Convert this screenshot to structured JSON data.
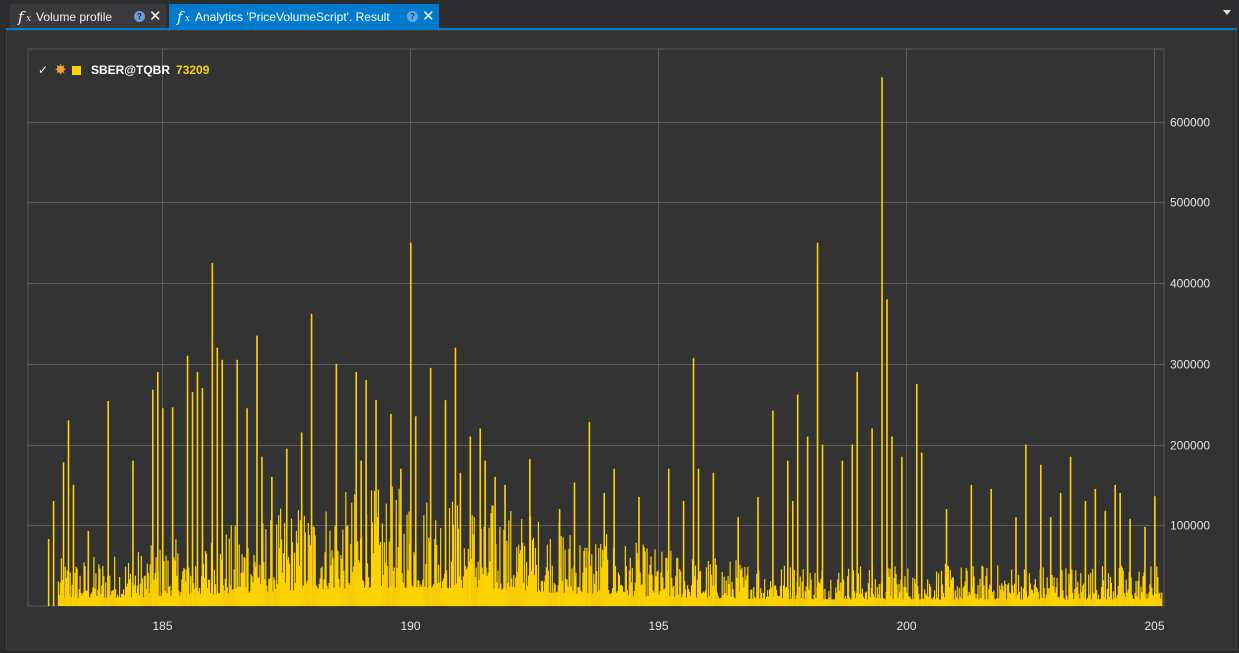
{
  "tabs": [
    {
      "title": "Volume profile",
      "active": false
    },
    {
      "title": "Analytics 'PriceVolumeScript'. Result",
      "active": true
    }
  ],
  "legend": {
    "series_name": "SBER@TQBR",
    "value": "73209",
    "swatch_color": "#ffd200",
    "checked": true
  },
  "chart_data": {
    "type": "bar",
    "series": [
      {
        "name": "SBER@TQBR",
        "color": "#ffd200",
        "x": [
          182.7,
          182.8,
          183.0,
          183.1,
          183.2,
          183.5,
          183.9,
          184.4,
          184.8,
          184.9,
          185.0,
          185.2,
          185.5,
          185.6,
          185.7,
          185.8,
          186.0,
          186.1,
          186.2,
          186.5,
          186.7,
          186.9,
          187.0,
          187.2,
          187.5,
          187.8,
          188.0,
          188.5,
          188.9,
          189.0,
          189.1,
          189.3,
          189.6,
          189.8,
          190.0,
          190.1,
          190.4,
          190.7,
          190.9,
          191.0,
          191.2,
          191.4,
          191.5,
          191.7,
          191.9,
          192.4,
          193.0,
          193.3,
          193.6,
          193.9,
          194.1,
          194.6,
          195.2,
          195.5,
          195.7,
          195.8,
          196.1,
          196.6,
          197.0,
          197.3,
          197.6,
          197.7,
          197.8,
          198.0,
          198.2,
          198.3,
          198.7,
          198.9,
          199.0,
          199.3,
          199.5,
          199.6,
          199.7,
          199.9,
          200.2,
          200.3,
          200.8,
          201.3,
          201.7,
          202.2,
          202.4,
          202.7,
          202.9,
          203.1,
          203.3,
          203.6,
          203.8,
          204.0,
          204.2,
          204.3,
          204.5,
          204.8,
          205.0
        ],
        "values": [
          83000,
          130000,
          178000,
          230000,
          150000,
          93000,
          254000,
          180000,
          268000,
          290000,
          245000,
          246000,
          310000,
          265000,
          290000,
          270000,
          425000,
          320000,
          305000,
          305000,
          245000,
          335000,
          185000,
          160000,
          195000,
          215000,
          362000,
          300000,
          290000,
          180000,
          280000,
          255000,
          238000,
          170000,
          450000,
          235000,
          295000,
          255000,
          320000,
          165000,
          210000,
          220000,
          180000,
          160000,
          150000,
          182000,
          120000,
          153000,
          228000,
          140000,
          170000,
          135000,
          170000,
          130000,
          307000,
          170000,
          165000,
          110000,
          135000,
          242000,
          180000,
          130000,
          262000,
          210000,
          450000,
          200000,
          180000,
          200000,
          290000,
          220000,
          655000,
          380000,
          210000,
          185000,
          275000,
          190000,
          120000,
          150000,
          145000,
          110000,
          200000,
          175000,
          110000,
          140000,
          185000,
          130000,
          145000,
          118000,
          150000,
          140000,
          108000,
          98000,
          136000
        ]
      }
    ],
    "background_noise": {
      "description_free": true,
      "peak_center_x": 189.8,
      "typical_max": 150000
    },
    "xlim": [
      182.3,
      205.2
    ],
    "ylim": [
      0,
      690000
    ],
    "x_ticks": [
      185,
      190,
      195,
      200,
      205
    ],
    "y_ticks": [
      100000,
      200000,
      300000,
      400000,
      500000,
      600000
    ],
    "x_tick_labels": [
      "185",
      "190",
      "195",
      "200",
      "205"
    ],
    "y_tick_labels": [
      "100000",
      "200000",
      "300000",
      "400000",
      "500000",
      "600000"
    ],
    "grid": true,
    "y_axis_side": "right",
    "legend_position": "top-left",
    "colors": {
      "background": "#333333",
      "grid": "#5a5a5a",
      "bar": "#ffd200",
      "axis_text": "#e6e6e6"
    }
  }
}
